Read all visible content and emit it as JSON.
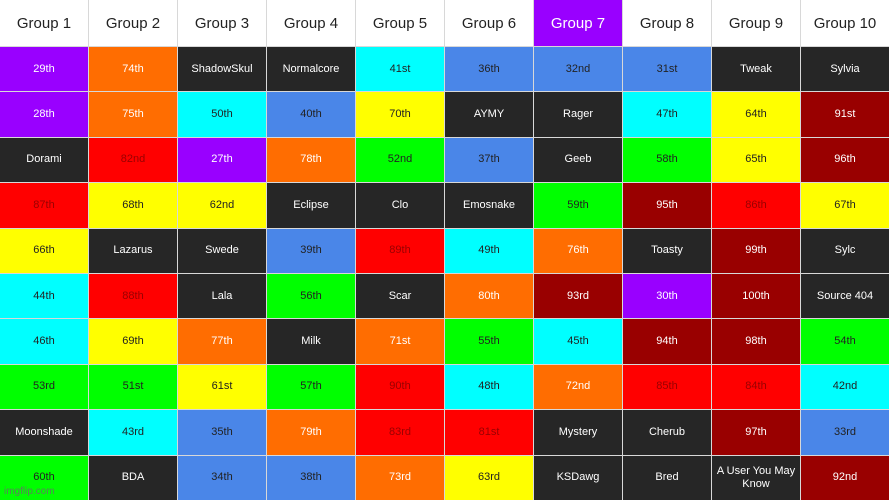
{
  "colors": {
    "purple": "#9900ff",
    "orange": "#ff6d01",
    "dark": "#262626",
    "cyan": "#00ffff",
    "blue": "#4a86e8",
    "yellow": "#ffff00",
    "maroon": "#990000",
    "red": "#ff0000",
    "green": "#00ff00",
    "white": "#ffffff"
  },
  "text_colors": {
    "purple": "#ffffff",
    "orange": "#ffffff",
    "dark": "#ffffff",
    "cyan": "#222222",
    "blue": "#222222",
    "yellow": "#222222",
    "maroon": "#ffffff",
    "red": "#990000",
    "green": "#222222",
    "white": "#222222"
  },
  "headers": [
    {
      "label": "Group 1",
      "color": "white"
    },
    {
      "label": "Group 2",
      "color": "white"
    },
    {
      "label": "Group 3",
      "color": "white"
    },
    {
      "label": "Group 4",
      "color": "white"
    },
    {
      "label": "Group 5",
      "color": "white"
    },
    {
      "label": "Group 6",
      "color": "white"
    },
    {
      "label": "Group 7",
      "color": "purple"
    },
    {
      "label": "Group 8",
      "color": "white"
    },
    {
      "label": "Group 9",
      "color": "white"
    },
    {
      "label": "Group 10",
      "color": "white"
    }
  ],
  "rows": [
    [
      {
        "text": "29th",
        "color": "purple"
      },
      {
        "text": "74th",
        "color": "orange"
      },
      {
        "text": "ShadowSkul",
        "color": "dark"
      },
      {
        "text": "Normalcore",
        "color": "dark"
      },
      {
        "text": "41st",
        "color": "cyan"
      },
      {
        "text": "36th",
        "color": "blue"
      },
      {
        "text": "32nd",
        "color": "blue"
      },
      {
        "text": "31st",
        "color": "blue"
      },
      {
        "text": "Tweak",
        "color": "dark"
      },
      {
        "text": "Sylvia",
        "color": "dark"
      }
    ],
    [
      {
        "text": "28th",
        "color": "purple"
      },
      {
        "text": "75th",
        "color": "orange"
      },
      {
        "text": "50th",
        "color": "cyan"
      },
      {
        "text": "40th",
        "color": "blue"
      },
      {
        "text": "70th",
        "color": "yellow"
      },
      {
        "text": "AYMY",
        "color": "dark"
      },
      {
        "text": "Rager",
        "color": "dark"
      },
      {
        "text": "47th",
        "color": "cyan"
      },
      {
        "text": "64th",
        "color": "yellow"
      },
      {
        "text": "91st",
        "color": "maroon"
      }
    ],
    [
      {
        "text": "Dorami",
        "color": "dark"
      },
      {
        "text": "82nd",
        "color": "red"
      },
      {
        "text": "27th",
        "color": "purple"
      },
      {
        "text": "78th",
        "color": "orange"
      },
      {
        "text": "52nd",
        "color": "green"
      },
      {
        "text": "37th",
        "color": "blue"
      },
      {
        "text": "Geeb",
        "color": "dark"
      },
      {
        "text": "58th",
        "color": "green"
      },
      {
        "text": "65th",
        "color": "yellow"
      },
      {
        "text": "96th",
        "color": "maroon"
      }
    ],
    [
      {
        "text": "87th",
        "color": "red"
      },
      {
        "text": "68th",
        "color": "yellow"
      },
      {
        "text": "62nd",
        "color": "yellow"
      },
      {
        "text": "Eclipse",
        "color": "dark"
      },
      {
        "text": "Clo",
        "color": "dark"
      },
      {
        "text": "Emosnake",
        "color": "dark"
      },
      {
        "text": "59th",
        "color": "green"
      },
      {
        "text": "95th",
        "color": "maroon"
      },
      {
        "text": "86th",
        "color": "red"
      },
      {
        "text": "67th",
        "color": "yellow"
      }
    ],
    [
      {
        "text": "66th",
        "color": "yellow"
      },
      {
        "text": "Lazarus",
        "color": "dark"
      },
      {
        "text": "Swede",
        "color": "dark"
      },
      {
        "text": "39th",
        "color": "blue"
      },
      {
        "text": "89th",
        "color": "red"
      },
      {
        "text": "49th",
        "color": "cyan"
      },
      {
        "text": "76th",
        "color": "orange"
      },
      {
        "text": "Toasty",
        "color": "dark"
      },
      {
        "text": "99th",
        "color": "maroon"
      },
      {
        "text": "Sylc",
        "color": "dark"
      }
    ],
    [
      {
        "text": "44th",
        "color": "cyan"
      },
      {
        "text": "88th",
        "color": "red"
      },
      {
        "text": "Lala",
        "color": "dark"
      },
      {
        "text": "56th",
        "color": "green"
      },
      {
        "text": "Scar",
        "color": "dark"
      },
      {
        "text": "80th",
        "color": "orange"
      },
      {
        "text": "93rd",
        "color": "maroon"
      },
      {
        "text": "30th",
        "color": "purple"
      },
      {
        "text": "100th",
        "color": "maroon"
      },
      {
        "text": "Source 404",
        "color": "dark"
      }
    ],
    [
      {
        "text": "46th",
        "color": "cyan"
      },
      {
        "text": "69th",
        "color": "yellow"
      },
      {
        "text": "77th",
        "color": "orange"
      },
      {
        "text": "Milk",
        "color": "dark"
      },
      {
        "text": "71st",
        "color": "orange"
      },
      {
        "text": "55th",
        "color": "green"
      },
      {
        "text": "45th",
        "color": "cyan"
      },
      {
        "text": "94th",
        "color": "maroon"
      },
      {
        "text": "98th",
        "color": "maroon"
      },
      {
        "text": "54th",
        "color": "green"
      }
    ],
    [
      {
        "text": "53rd",
        "color": "green"
      },
      {
        "text": "51st",
        "color": "green"
      },
      {
        "text": "61st",
        "color": "yellow"
      },
      {
        "text": "57th",
        "color": "green"
      },
      {
        "text": "90th",
        "color": "red"
      },
      {
        "text": "48th",
        "color": "cyan"
      },
      {
        "text": "72nd",
        "color": "orange"
      },
      {
        "text": "85th",
        "color": "red"
      },
      {
        "text": "84th",
        "color": "red"
      },
      {
        "text": "42nd",
        "color": "cyan"
      }
    ],
    [
      {
        "text": "Moonshade",
        "color": "dark"
      },
      {
        "text": "43rd",
        "color": "cyan"
      },
      {
        "text": "35th",
        "color": "blue"
      },
      {
        "text": "79th",
        "color": "orange"
      },
      {
        "text": "83rd",
        "color": "red"
      },
      {
        "text": "81st",
        "color": "red"
      },
      {
        "text": "Mystery",
        "color": "dark"
      },
      {
        "text": "Cherub",
        "color": "dark"
      },
      {
        "text": "97th",
        "color": "maroon"
      },
      {
        "text": "33rd",
        "color": "blue"
      }
    ],
    [
      {
        "text": "60th",
        "color": "green"
      },
      {
        "text": "BDA",
        "color": "dark"
      },
      {
        "text": "34th",
        "color": "blue"
      },
      {
        "text": "38th",
        "color": "blue"
      },
      {
        "text": "73rd",
        "color": "orange"
      },
      {
        "text": "63rd",
        "color": "yellow"
      },
      {
        "text": "KSDawg",
        "color": "dark"
      },
      {
        "text": "Bred",
        "color": "dark"
      },
      {
        "text": "A User You May Know",
        "color": "dark"
      },
      {
        "text": "92nd",
        "color": "maroon"
      }
    ]
  ],
  "watermark": "imgflip.com"
}
